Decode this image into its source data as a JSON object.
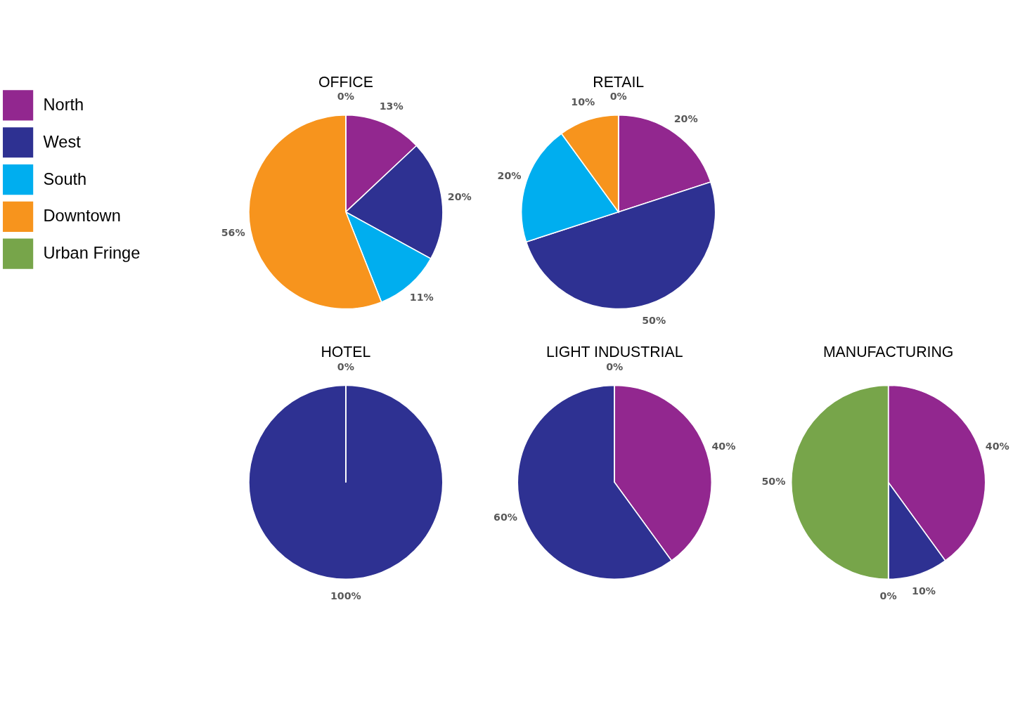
{
  "chart_data": [
    {
      "type": "pie",
      "title": "OFFICE",
      "legend": "left",
      "categories": [
        "North",
        "West",
        "South",
        "Downtown",
        "Urban Fringe"
      ],
      "values": [
        13,
        20,
        11,
        56,
        0
      ],
      "colors": [
        "#92278f",
        "#2e3192",
        "#00aeef",
        "#f7941d",
        "#77a54a"
      ],
      "value_labels": [
        "13%",
        "20%",
        "11%",
        "56%",
        "0%"
      ]
    },
    {
      "type": "pie",
      "title": "RETAIL",
      "categories": [
        null,
        null,
        null,
        null,
        null
      ],
      "values": [
        20,
        50,
        20,
        10,
        0
      ],
      "colors": [
        "#92278f",
        "#2e3192",
        "#00aeef",
        "#f7941d",
        "#77a54a"
      ],
      "value_labels": [
        "20%",
        "50%",
        "20%",
        "10%",
        "0%"
      ]
    },
    {
      "type": "pie",
      "title": "HOTEL",
      "categories": [
        null,
        null,
        null,
        null,
        null
      ],
      "values": [
        0,
        100,
        0,
        0,
        0
      ],
      "colors": [
        "#92278f",
        "#2e3192",
        "#00aeef",
        "#f7941d",
        "#77a54a"
      ],
      "value_labels": [
        null,
        "100%",
        null,
        null,
        "0%"
      ]
    },
    {
      "type": "pie",
      "title": "LIGHT INDUSTRIAL",
      "categories": [
        null,
        null,
        null,
        null,
        null
      ],
      "values": [
        40,
        60,
        0,
        0,
        0
      ],
      "colors": [
        "#92278f",
        "#2e3192",
        "#00aeef",
        "#f7941d",
        "#77a54a"
      ],
      "value_labels": [
        "40%",
        "60%",
        null,
        null,
        "0%"
      ]
    },
    {
      "type": "pie",
      "title": "MANUFACTURING",
      "categories": [
        null,
        null,
        null,
        null,
        null
      ],
      "values": [
        40,
        10,
        0,
        0,
        50
      ],
      "colors": [
        "#92278f",
        "#2e3192",
        "#00aeef",
        "#f7941d",
        "#77a54a"
      ],
      "value_labels": [
        "40%",
        "10%",
        "0%",
        null,
        "50%"
      ]
    }
  ]
}
